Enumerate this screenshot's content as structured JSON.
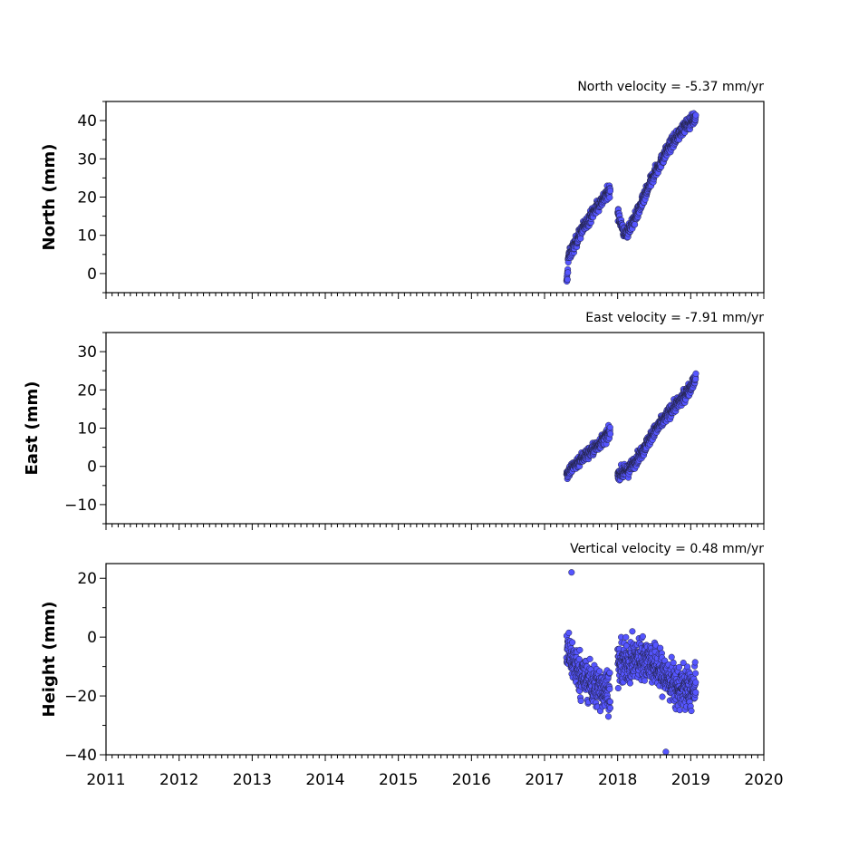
{
  "chart_data": [
    {
      "type": "scatter",
      "title": "North velocity = -5.37 mm/yr",
      "ylabel": "North (mm)",
      "xlim": [
        2011,
        2020
      ],
      "ylim": [
        -5,
        45
      ],
      "yticks": [
        0,
        10,
        20,
        30,
        40
      ],
      "x_tick_labels_visible": false,
      "marker_color": "#5555ff",
      "segments": [
        {
          "x": [
            2017.3,
            2017.32
          ],
          "y": [
            -3,
            1
          ]
        },
        {
          "x": [
            2017.32,
            2017.5,
            2017.7,
            2017.9
          ],
          "y": [
            4,
            11,
            17,
            22
          ]
        },
        {
          "x": [
            2018.0,
            2018.1,
            2018.2,
            2018.3
          ],
          "y": [
            16,
            10,
            13,
            17
          ]
        },
        {
          "x": [
            2018.3,
            2018.5,
            2018.7,
            2018.9,
            2019.07
          ],
          "y": [
            17,
            26,
            33,
            38,
            41
          ]
        }
      ]
    },
    {
      "type": "scatter",
      "title": "East velocity = -7.91 mm/yr",
      "ylabel": "East (mm)",
      "xlim": [
        2011,
        2020
      ],
      "ylim": [
        -15,
        35
      ],
      "yticks": [
        -10,
        0,
        10,
        20,
        30
      ],
      "x_tick_labels_visible": false,
      "marker_color": "#5555ff",
      "segments": [
        {
          "x": [
            2017.3,
            2017.5,
            2017.7,
            2017.9
          ],
          "y": [
            -2,
            2,
            5,
            9
          ]
        },
        {
          "x": [
            2018.0,
            2018.15,
            2018.3,
            2018.5,
            2018.7,
            2018.9,
            2019.07
          ],
          "y": [
            -2,
            -1,
            3,
            9,
            14,
            18,
            23
          ]
        }
      ]
    },
    {
      "type": "scatter",
      "title": "Vertical velocity = 0.48 mm/yr",
      "ylabel": "Height (mm)",
      "xlim": [
        2011,
        2020
      ],
      "ylim": [
        -40,
        25
      ],
      "yticks": [
        -40,
        -20,
        0,
        20
      ],
      "x_tick_labels": [
        "2011",
        "2012",
        "2013",
        "2014",
        "2015",
        "2016",
        "2017",
        "2018",
        "2019",
        "2020"
      ],
      "marker_color": "#5555ff",
      "segments": [
        {
          "x": [
            2017.3,
            2017.5,
            2017.7,
            2017.9
          ],
          "y": [
            -4,
            -13,
            -17,
            -18
          ]
        },
        {
          "x": [
            2018.0,
            2018.2,
            2018.4,
            2018.6,
            2018.8,
            2019.07
          ],
          "y": [
            -10,
            -8,
            -7,
            -12,
            -17,
            -18
          ]
        }
      ],
      "outliers": [
        [
          2017.37,
          22
        ],
        [
          2018.66,
          -39
        ]
      ]
    }
  ]
}
